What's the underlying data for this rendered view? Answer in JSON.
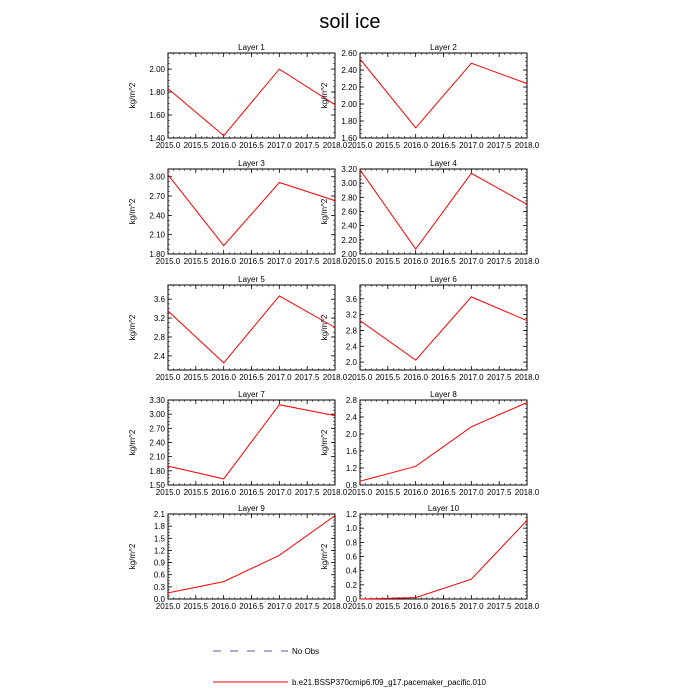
{
  "figure": {
    "title": "soil ice",
    "legend": [
      {
        "label": "No Obs",
        "color": "#5a5aa8",
        "dash": "dashed"
      },
      {
        "label": "b.e21.BSSP370cmip6.f09_g17.pacemaker_pacific.010",
        "color": "#ff0000",
        "dash": "solid"
      }
    ]
  },
  "chart_data": [
    {
      "type": "line",
      "title": "Layer 1",
      "ylabel": "kg/m^2",
      "x": [
        2015,
        2016,
        2017,
        2018
      ],
      "series": [
        {
          "values": [
            1.83,
            1.42,
            2.0,
            1.69
          ],
          "color": "#ff0000"
        }
      ],
      "xlim": [
        2015,
        2018
      ],
      "ylim": [
        1.4,
        2.14
      ],
      "xticks": [
        "2015.0",
        "2015.5",
        "2016.0",
        "2016.5",
        "2017.0",
        "2017.5",
        "2018.0"
      ],
      "yticks": [
        "1.40",
        "1.60",
        "1.80",
        "2.00"
      ]
    },
    {
      "type": "line",
      "title": "Layer 2",
      "ylabel": "kg/m^2",
      "x": [
        2015,
        2016,
        2017,
        2018
      ],
      "series": [
        {
          "values": [
            2.53,
            1.72,
            2.48,
            2.24
          ],
          "color": "#ff0000"
        }
      ],
      "xlim": [
        2015,
        2018
      ],
      "ylim": [
        1.6,
        2.6
      ],
      "xticks": [
        "2015.0",
        "2015.5",
        "2016.0",
        "2016.5",
        "2017.0",
        "2017.5",
        "2018.0"
      ],
      "yticks": [
        "1.60",
        "1.80",
        "2.00",
        "2.20",
        "2.40",
        "2.60"
      ]
    },
    {
      "type": "line",
      "title": "Layer 3",
      "ylabel": "kg/m^2",
      "x": [
        2015,
        2016,
        2017,
        2018
      ],
      "series": [
        {
          "values": [
            3.03,
            1.93,
            2.91,
            2.63
          ],
          "color": "#ff0000"
        }
      ],
      "xlim": [
        2015,
        2018
      ],
      "ylim": [
        1.8,
        3.12
      ],
      "xticks": [
        "2015.0",
        "2015.5",
        "2016.0",
        "2016.5",
        "2017.0",
        "2017.5",
        "2018.0"
      ],
      "yticks": [
        "1.80",
        "2.10",
        "2.40",
        "2.70",
        "3.00"
      ]
    },
    {
      "type": "line",
      "title": "Layer 4",
      "ylabel": "kg/m^2",
      "x": [
        2015,
        2016,
        2017,
        2018
      ],
      "series": [
        {
          "values": [
            3.19,
            2.07,
            3.14,
            2.7
          ],
          "color": "#ff0000"
        }
      ],
      "xlim": [
        2015,
        2018
      ],
      "ylim": [
        2.0,
        3.2
      ],
      "xticks": [
        "2015.0",
        "2015.5",
        "2016.0",
        "2016.5",
        "2017.0",
        "2017.5",
        "2018.0"
      ],
      "yticks": [
        "2.00",
        "2.20",
        "2.40",
        "2.60",
        "2.80",
        "3.00",
        "3.20"
      ]
    },
    {
      "type": "line",
      "title": "Layer 5",
      "ylabel": "kg/m^2",
      "x": [
        2015,
        2016,
        2017,
        2018
      ],
      "series": [
        {
          "values": [
            3.35,
            2.25,
            3.67,
            3.0
          ],
          "color": "#ff0000"
        }
      ],
      "xlim": [
        2015,
        2018
      ],
      "ylim": [
        2.1,
        3.9
      ],
      "xticks": [
        "2015.0",
        "2015.5",
        "2016.0",
        "2016.5",
        "2017.0",
        "2017.5",
        "2018.0"
      ],
      "yticks": [
        "2.4",
        "2.8",
        "3.2",
        "3.6"
      ]
    },
    {
      "type": "line",
      "title": "Layer 6",
      "ylabel": "kg/m^2",
      "x": [
        2015,
        2016,
        2017,
        2018
      ],
      "series": [
        {
          "values": [
            3.05,
            2.05,
            3.65,
            3.05
          ],
          "color": "#ff0000"
        }
      ],
      "xlim": [
        2015,
        2018
      ],
      "ylim": [
        1.8,
        3.95
      ],
      "xticks": [
        "2015.0",
        "2015.5",
        "2016.0",
        "2016.5",
        "2017.0",
        "2017.5",
        "2018.0"
      ],
      "yticks": [
        "2.0",
        "2.4",
        "2.8",
        "3.2",
        "3.6"
      ]
    },
    {
      "type": "line",
      "title": "Layer 7",
      "ylabel": "kg/m^2",
      "x": [
        2015,
        2016,
        2017,
        2018
      ],
      "series": [
        {
          "values": [
            1.9,
            1.63,
            3.2,
            2.97
          ],
          "color": "#ff0000"
        }
      ],
      "xlim": [
        2015,
        2018
      ],
      "ylim": [
        1.5,
        3.3
      ],
      "xticks": [
        "2015.0",
        "2015.5",
        "2016.0",
        "2016.5",
        "2017.0",
        "2017.5",
        "2018.0"
      ],
      "yticks": [
        "1.50",
        "1.80",
        "2.10",
        "2.40",
        "2.70",
        "3.00",
        "3.30"
      ]
    },
    {
      "type": "line",
      "title": "Layer 8",
      "ylabel": "kg/m^2",
      "x": [
        2015,
        2016,
        2017,
        2018
      ],
      "series": [
        {
          "values": [
            0.89,
            1.24,
            2.17,
            2.74
          ],
          "color": "#ff0000"
        }
      ],
      "xlim": [
        2015,
        2018
      ],
      "ylim": [
        0.8,
        2.8
      ],
      "xticks": [
        "2015.0",
        "2015.5",
        "2016.0",
        "2016.5",
        "2017.0",
        "2017.5",
        "2018.0"
      ],
      "yticks": [
        "0.8",
        "1.2",
        "1.6",
        "2.0",
        "2.4",
        "2.8"
      ]
    },
    {
      "type": "line",
      "title": "Layer 9",
      "ylabel": "kg/m^2",
      "x": [
        2015,
        2016,
        2017,
        2018
      ],
      "series": [
        {
          "values": [
            0.15,
            0.43,
            1.08,
            2.06
          ],
          "color": "#ff0000"
        }
      ],
      "xlim": [
        2015,
        2018
      ],
      "ylim": [
        0.0,
        2.1
      ],
      "xticks": [
        "2015.0",
        "2015.5",
        "2016.0",
        "2016.5",
        "2017.0",
        "2017.5",
        "2018.0"
      ],
      "yticks": [
        "0.0",
        "0.3",
        "0.6",
        "0.9",
        "1.2",
        "1.5",
        "1.8",
        "2.1"
      ]
    },
    {
      "type": "line",
      "title": "Layer 10",
      "ylabel": "kg/m^2",
      "x": [
        2015,
        2016,
        2017,
        2018
      ],
      "series": [
        {
          "values": [
            0.0,
            0.02,
            0.28,
            1.11
          ],
          "color": "#ff0000"
        }
      ],
      "xlim": [
        2015,
        2018
      ],
      "ylim": [
        0.0,
        1.2
      ],
      "xticks": [
        "2015.0",
        "2015.5",
        "2016.0",
        "2016.5",
        "2017.0",
        "2017.5",
        "2018.0"
      ],
      "yticks": [
        "0.0",
        "0.2",
        "0.4",
        "0.6",
        "0.8",
        "1.0",
        "1.2"
      ]
    }
  ]
}
